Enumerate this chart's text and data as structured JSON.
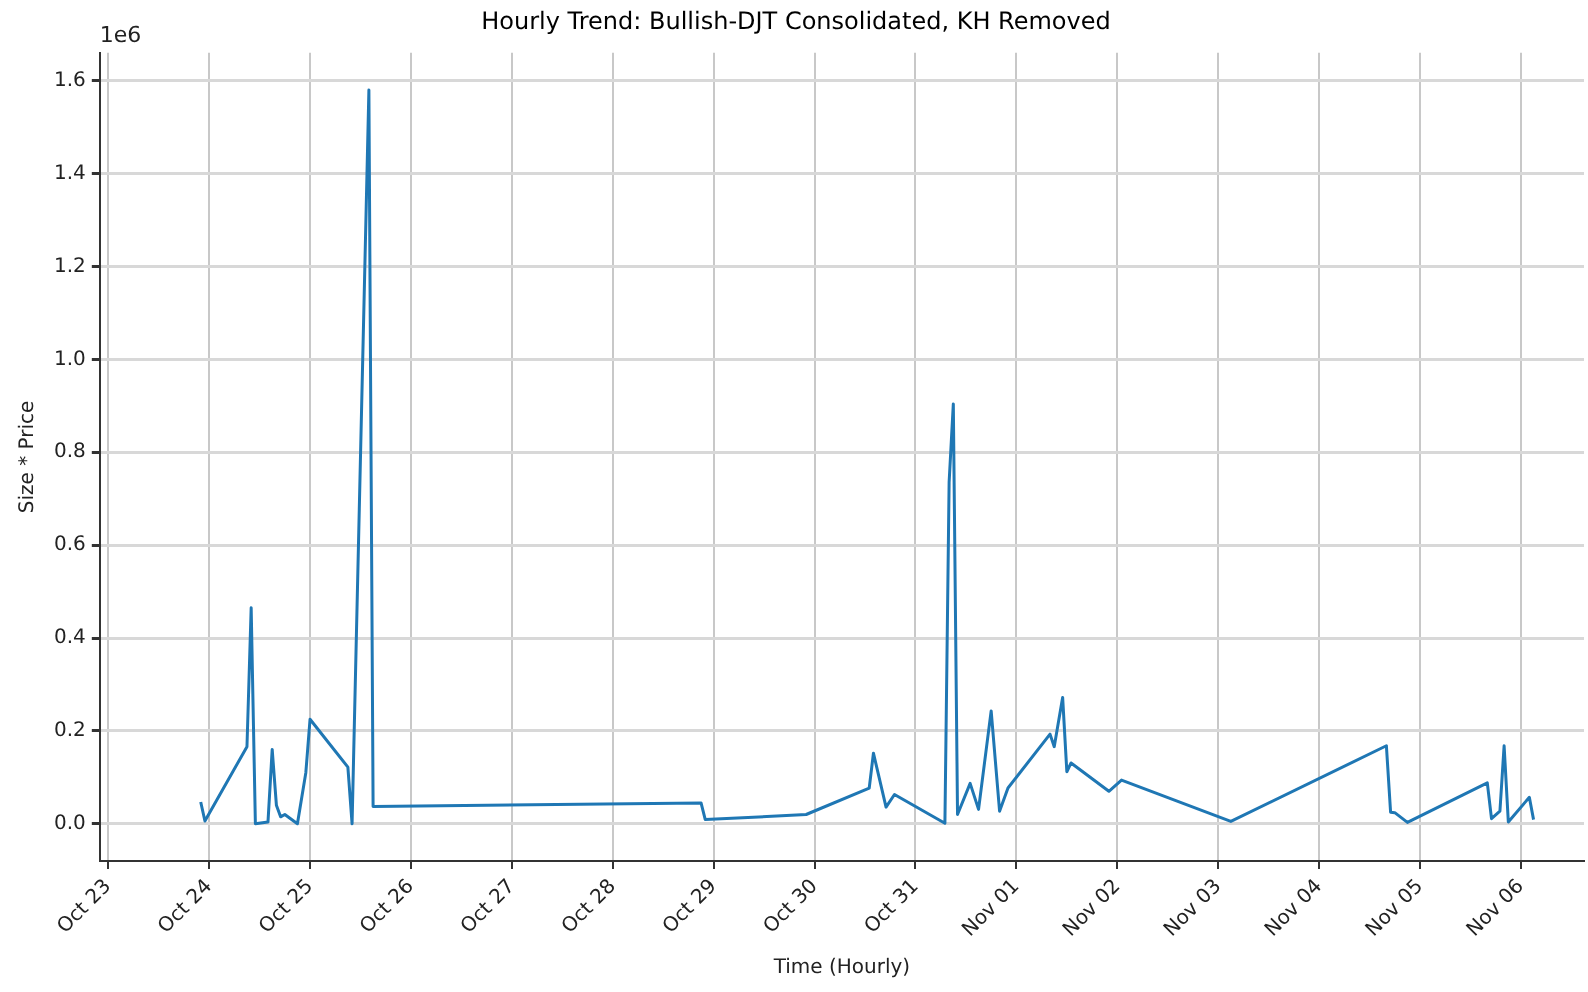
{
  "chart_data": {
    "type": "line",
    "title": "Hourly Trend: Bullish-DJT Consolidated, KH Removed",
    "xlabel": "Time (Hourly)",
    "ylabel": "Size * Price",
    "annotations": [
      "1e6"
    ],
    "x": [
      "--10-23T22:00",
      "--10-23T23:00",
      "--10-24T09:00",
      "--10-24T10:00",
      "--10-24T11:00",
      "--10-24T14:00",
      "--10-24T15:00",
      "--10-24T16:00",
      "--10-24T17:00",
      "--10-24T18:00",
      "--10-24T21:00",
      "--10-24T23:00",
      "--10-25T00:00",
      "--10-25T09:00",
      "--10-25T10:00",
      "--10-25T14:00",
      "--10-25T15:00",
      "--10-28T21:00",
      "--10-28T22:00",
      "--10-29T22:00",
      "--10-30T13:00",
      "--10-30T14:00",
      "--10-30T17:00",
      "--10-30T19:00",
      "--10-31T07:00",
      "--10-31T08:00",
      "--10-31T09:00",
      "--10-31T10:00",
      "--10-31T13:00",
      "--10-31T15:00",
      "--10-31T18:00",
      "--10-31T20:00",
      "--10-31T22:00",
      "--11-01T08:00",
      "--11-01T09:00",
      "--11-01T11:00",
      "--11-01T12:00",
      "--11-01T13:00",
      "--11-01T22:00",
      "--11-02T01:00",
      "--11-03T03:00",
      "--11-04T16:00",
      "--11-04T17:00",
      "--11-04T18:00",
      "--11-04T21:00",
      "--11-05T16:00",
      "--11-05T17:00",
      "--11-05T19:00",
      "--11-05T20:00",
      "--11-05T21:00",
      "--11-06T02:00",
      "--11-06T03:00"
    ],
    "series": [
      {
        "color": "#1f77b4",
        "values": [
          0.047,
          0.006,
          0.166,
          0.465,
          0.0,
          0.004,
          0.16,
          0.04,
          0.015,
          0.02,
          0.0,
          0.11,
          0.225,
          0.122,
          0.0,
          1.58,
          0.037,
          0.045,
          0.009,
          0.02,
          0.077,
          0.152,
          0.036,
          0.063,
          0.001,
          0.735,
          0.904,
          0.02,
          0.087,
          0.031,
          0.243,
          0.027,
          0.077,
          0.193,
          0.166,
          0.272,
          0.112,
          0.131,
          0.07,
          0.094,
          0.005,
          0.168,
          0.025,
          0.024,
          0.003,
          0.088,
          0.011,
          0.027,
          0.168,
          0.004,
          0.057,
          0.009
        ]
      }
    ],
    "xlim": [
      "--10-22T22:00",
      "--11-06T15:00"
    ],
    "xticks": [
      {
        "value": "--10-23",
        "label": "Oct 23"
      },
      {
        "value": "--10-24",
        "label": "Oct 24"
      },
      {
        "value": "--10-25",
        "label": "Oct 25"
      },
      {
        "value": "--10-26",
        "label": "Oct 26"
      },
      {
        "value": "--10-27",
        "label": "Oct 27"
      },
      {
        "value": "--10-28",
        "label": "Oct 28"
      },
      {
        "value": "--10-29",
        "label": "Oct 29"
      },
      {
        "value": "--10-30",
        "label": "Oct 30"
      },
      {
        "value": "--10-31",
        "label": "Oct 31"
      },
      {
        "value": "--11-01",
        "label": "Nov 01"
      },
      {
        "value": "--11-02",
        "label": "Nov 02"
      },
      {
        "value": "--11-03",
        "label": "Nov 03"
      },
      {
        "value": "--11-04",
        "label": "Nov 04"
      },
      {
        "value": "--11-05",
        "label": "Nov 05"
      },
      {
        "value": "--11-06",
        "label": "Nov 06"
      }
    ],
    "ylim": [
      -0.08,
      1.66
    ],
    "yticks": [
      {
        "value": 0,
        "label": "0.0"
      },
      {
        "value": 0.2,
        "label": "0.2"
      },
      {
        "value": 0.4,
        "label": "0.4"
      },
      {
        "value": 0.6,
        "label": "0.6"
      },
      {
        "value": 0.8,
        "label": "0.8"
      },
      {
        "value": 1.0,
        "label": "1.0"
      },
      {
        "value": 1.2,
        "label": "1.2"
      },
      {
        "value": 1.4,
        "label": "1.4"
      },
      {
        "value": 1.6,
        "label": "1.6"
      }
    ],
    "grid": true,
    "legend": false,
    "marker": "none",
    "line_style": "solid"
  }
}
